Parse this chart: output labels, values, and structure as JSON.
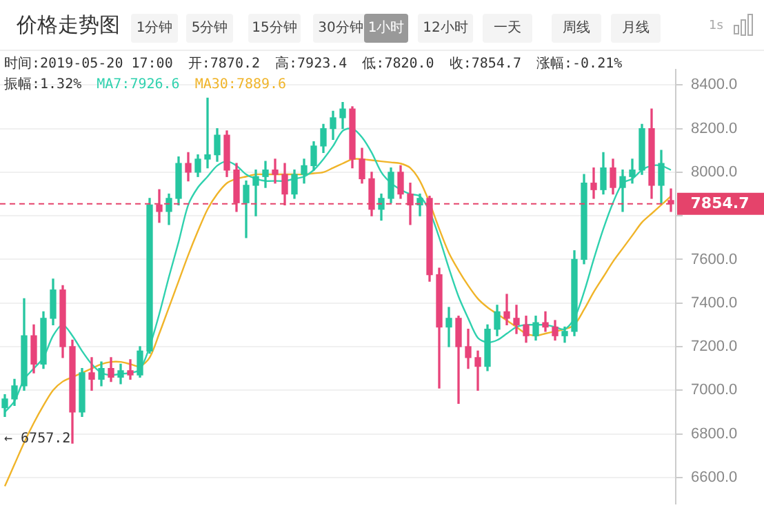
{
  "chart_data": {
    "type": "candlestick",
    "title": "价格走势图",
    "categories": [
      null,
      null,
      null,
      null,
      null,
      null,
      null,
      null,
      null,
      null,
      null,
      null,
      null,
      null,
      null,
      null,
      null,
      null,
      null,
      null,
      null,
      null,
      null,
      null,
      null,
      null,
      null,
      null,
      null,
      null,
      null,
      null,
      null,
      null,
      null,
      null,
      null,
      null,
      null,
      null,
      null,
      null,
      null,
      null,
      null,
      null,
      null,
      null,
      null,
      null,
      null,
      null,
      null,
      null,
      null,
      null,
      null,
      null,
      null,
      null,
      null,
      null,
      null,
      null,
      null,
      null,
      null,
      null,
      null,
      null
    ],
    "ohlc": [
      [
        6920,
        6980,
        6880,
        6960
      ],
      [
        6960,
        7050,
        6930,
        7020
      ],
      [
        7020,
        7420,
        7000,
        7250
      ],
      [
        7250,
        7300,
        7080,
        7120
      ],
      [
        7120,
        7360,
        7100,
        7330
      ],
      [
        7330,
        7510,
        7300,
        7460
      ],
      [
        7460,
        7480,
        7150,
        7200
      ],
      [
        7200,
        7230,
        6757.2,
        6900
      ],
      [
        6900,
        7100,
        6880,
        7080
      ],
      [
        7080,
        7150,
        7000,
        7050
      ],
      [
        7050,
        7130,
        7020,
        7100
      ],
      [
        7100,
        7150,
        7040,
        7060
      ],
      [
        7060,
        7120,
        7030,
        7090
      ],
      [
        7090,
        7140,
        7050,
        7070
      ],
      [
        7070,
        7200,
        7060,
        7180
      ],
      [
        7180,
        7880,
        7170,
        7850
      ],
      [
        7850,
        7920,
        7770,
        7820
      ],
      [
        7820,
        7900,
        7760,
        7880
      ],
      [
        7880,
        8070,
        7850,
        8040
      ],
      [
        8040,
        8090,
        7960,
        8000
      ],
      [
        8000,
        8080,
        7980,
        8060
      ],
      [
        8060,
        8340,
        8020,
        8080
      ],
      [
        8080,
        8200,
        8050,
        8170
      ],
      [
        8170,
        8190,
        7980,
        8010
      ],
      [
        8010,
        8040,
        7820,
        7860
      ],
      [
        7860,
        7960,
        7700,
        7940
      ],
      [
        7940,
        8010,
        7800,
        7980
      ],
      [
        7980,
        8050,
        7930,
        8010
      ],
      [
        8010,
        8060,
        7950,
        7990
      ],
      [
        7990,
        8040,
        7850,
        7900
      ],
      [
        7900,
        8010,
        7880,
        7990
      ],
      [
        7990,
        8060,
        7950,
        8030
      ],
      [
        8030,
        8140,
        8010,
        8120
      ],
      [
        8120,
        8220,
        8090,
        8200
      ],
      [
        8200,
        8280,
        8150,
        8250
      ],
      [
        8250,
        8320,
        8200,
        8290
      ],
      [
        8290,
        8300,
        8020,
        8060
      ],
      [
        8060,
        8110,
        7950,
        7970
      ],
      [
        7970,
        8000,
        7800,
        7830
      ],
      [
        7830,
        7900,
        7780,
        7880
      ],
      [
        7880,
        8020,
        7860,
        8000
      ],
      [
        8000,
        8030,
        7880,
        7900
      ],
      [
        7900,
        7950,
        7760,
        7850
      ],
      [
        7850,
        7900,
        7800,
        7880
      ],
      [
        7880,
        7890,
        7500,
        7530
      ],
      [
        7530,
        7560,
        7010,
        7290
      ],
      [
        7290,
        7380,
        7200,
        7330
      ],
      [
        7330,
        7340,
        6940,
        7200
      ],
      [
        7200,
        7280,
        7100,
        7150
      ],
      [
        7150,
        7180,
        7000,
        7110
      ],
      [
        7110,
        7300,
        7090,
        7280
      ],
      [
        7280,
        7390,
        7250,
        7360
      ],
      [
        7360,
        7440,
        7300,
        7330
      ],
      [
        7330,
        7390,
        7260,
        7300
      ],
      [
        7300,
        7340,
        7220,
        7250
      ],
      [
        7250,
        7340,
        7230,
        7310
      ],
      [
        7310,
        7360,
        7270,
        7290
      ],
      [
        7290,
        7320,
        7230,
        7250
      ],
      [
        7250,
        7290,
        7220,
        7270
      ],
      [
        7270,
        7640,
        7250,
        7600
      ],
      [
        7600,
        7990,
        7580,
        7950
      ],
      [
        7950,
        8020,
        7880,
        7920
      ],
      [
        7920,
        8090,
        7900,
        8020
      ],
      [
        8020,
        8060,
        7900,
        7930
      ],
      [
        7930,
        8010,
        7820,
        7980
      ],
      [
        7980,
        8060,
        7950,
        8010
      ],
      [
        8010,
        8220,
        7990,
        8200
      ],
      [
        8200,
        8290,
        7880,
        7940
      ],
      [
        7940,
        8100,
        7860,
        8040
      ],
      [
        7870.2,
        7923.4,
        7820.0,
        7854.7
      ]
    ],
    "colors": [
      "#26c6a0",
      "#26c6a0",
      "#26c6a0",
      "#e8437a",
      "#26c6a0",
      "#26c6a0",
      "#e8437a",
      "#e8437a",
      "#26c6a0",
      "#e8437a",
      "#26c6a0",
      "#e8437a",
      "#26c6a0",
      "#e8437a",
      "#26c6a0",
      "#26c6a0",
      "#e8437a",
      "#26c6a0",
      "#26c6a0",
      "#e8437a",
      "#26c6a0",
      "#26c6a0",
      "#26c6a0",
      "#e8437a",
      "#e8437a",
      "#26c6a0",
      "#26c6a0",
      "#26c6a0",
      "#e8437a",
      "#e8437a",
      "#26c6a0",
      "#26c6a0",
      "#26c6a0",
      "#26c6a0",
      "#26c6a0",
      "#26c6a0",
      "#e8437a",
      "#e8437a",
      "#e8437a",
      "#26c6a0",
      "#26c6a0",
      "#e8437a",
      "#e8437a",
      "#26c6a0",
      "#e8437a",
      "#e8437a",
      "#26c6a0",
      "#e8437a",
      "#e8437a",
      "#e8437a",
      "#26c6a0",
      "#26c6a0",
      "#e8437a",
      "#e8437a",
      "#e8437a",
      "#26c6a0",
      "#e8437a",
      "#e8437a",
      "#26c6a0",
      "#26c6a0",
      "#26c6a0",
      "#e8437a",
      "#26c6a0",
      "#e8437a",
      "#26c6a0",
      "#26c6a0",
      "#26c6a0",
      "#e8437a",
      "#26c6a0",
      "#e8437a"
    ],
    "series": [
      {
        "type": "line",
        "color": "#2fd1ae",
        "values": [
          6900,
          6950,
          7050,
          7100,
          7150,
          7250,
          7300,
          7250,
          7180,
          7120,
          7080,
          7070,
          7075,
          7080,
          7095,
          7200,
          7350,
          7520,
          7680,
          7850,
          7930,
          7980,
          8030,
          8050,
          8030,
          7990,
          7970,
          7960,
          7960,
          7960,
          7970,
          7980,
          8010,
          8060,
          8120,
          8190,
          8200,
          8160,
          8090,
          8000,
          7950,
          7920,
          7900,
          7890,
          7820,
          7700,
          7560,
          7430,
          7330,
          7240,
          7220,
          7230,
          7260,
          7290,
          7300,
          7300,
          7300,
          7290,
          7280,
          7330,
          7450,
          7600,
          7740,
          7860,
          7950,
          7970,
          8010,
          8030,
          8030,
          8010
        ]
      },
      {
        "type": "line",
        "color": "#f0b429",
        "values": [
          6560,
          6660,
          6760,
          6850,
          6930,
          7000,
          7040,
          7060,
          7080,
          7100,
          7120,
          7130,
          7130,
          7120,
          7110,
          7150,
          7260,
          7380,
          7500,
          7620,
          7730,
          7830,
          7900,
          7950,
          7970,
          7980,
          7990,
          7990,
          7990,
          7990,
          7990,
          7990,
          7995,
          8000,
          8020,
          8040,
          8060,
          8060,
          8055,
          8050,
          8045,
          8040,
          8020,
          7960,
          7860,
          7740,
          7630,
          7550,
          7480,
          7420,
          7380,
          7350,
          7320,
          7290,
          7260,
          7250,
          7260,
          7270,
          7280,
          7300,
          7370,
          7450,
          7520,
          7590,
          7650,
          7710,
          7770,
          7810,
          7850,
          7890
        ]
      }
    ],
    "ylim": [
      6480,
      8470
    ],
    "yticks": [
      {
        "value": 6600,
        "label": "6600.0"
      },
      {
        "value": 6800,
        "label": "6800.0"
      },
      {
        "value": 7000,
        "label": "7000.0"
      },
      {
        "value": 7200,
        "label": "7200.0"
      },
      {
        "value": 7400,
        "label": "7400.0"
      },
      {
        "value": 7600,
        "label": "7600.0"
      },
      {
        "value": 7800,
        "label": null
      },
      {
        "value": 8000,
        "label": "8000.0"
      },
      {
        "value": 8200,
        "label": "8200.0"
      },
      {
        "value": 8400,
        "label": "8400.0"
      }
    ],
    "grid": "y",
    "ref_lines": [
      {
        "axis": "y",
        "value": 7854.7,
        "label": "7854.7",
        "color": "#e5436b",
        "line_style": "dashed"
      }
    ],
    "annotations": [
      "1分钟",
      "5分钟",
      "15分钟",
      "30分钟",
      "1小时",
      "12小时",
      "一天",
      "周线",
      "月线",
      "1s",
      "时间:2019-05-20 17:00",
      "开:7870.2",
      "高:7923.4",
      "低:7820.0",
      "收:7854.7",
      "涨幅:-0.21%",
      "振幅:1.32%",
      "MA7:7926.6",
      "MA30:7889.6",
      "← 6757.2"
    ]
  }
}
